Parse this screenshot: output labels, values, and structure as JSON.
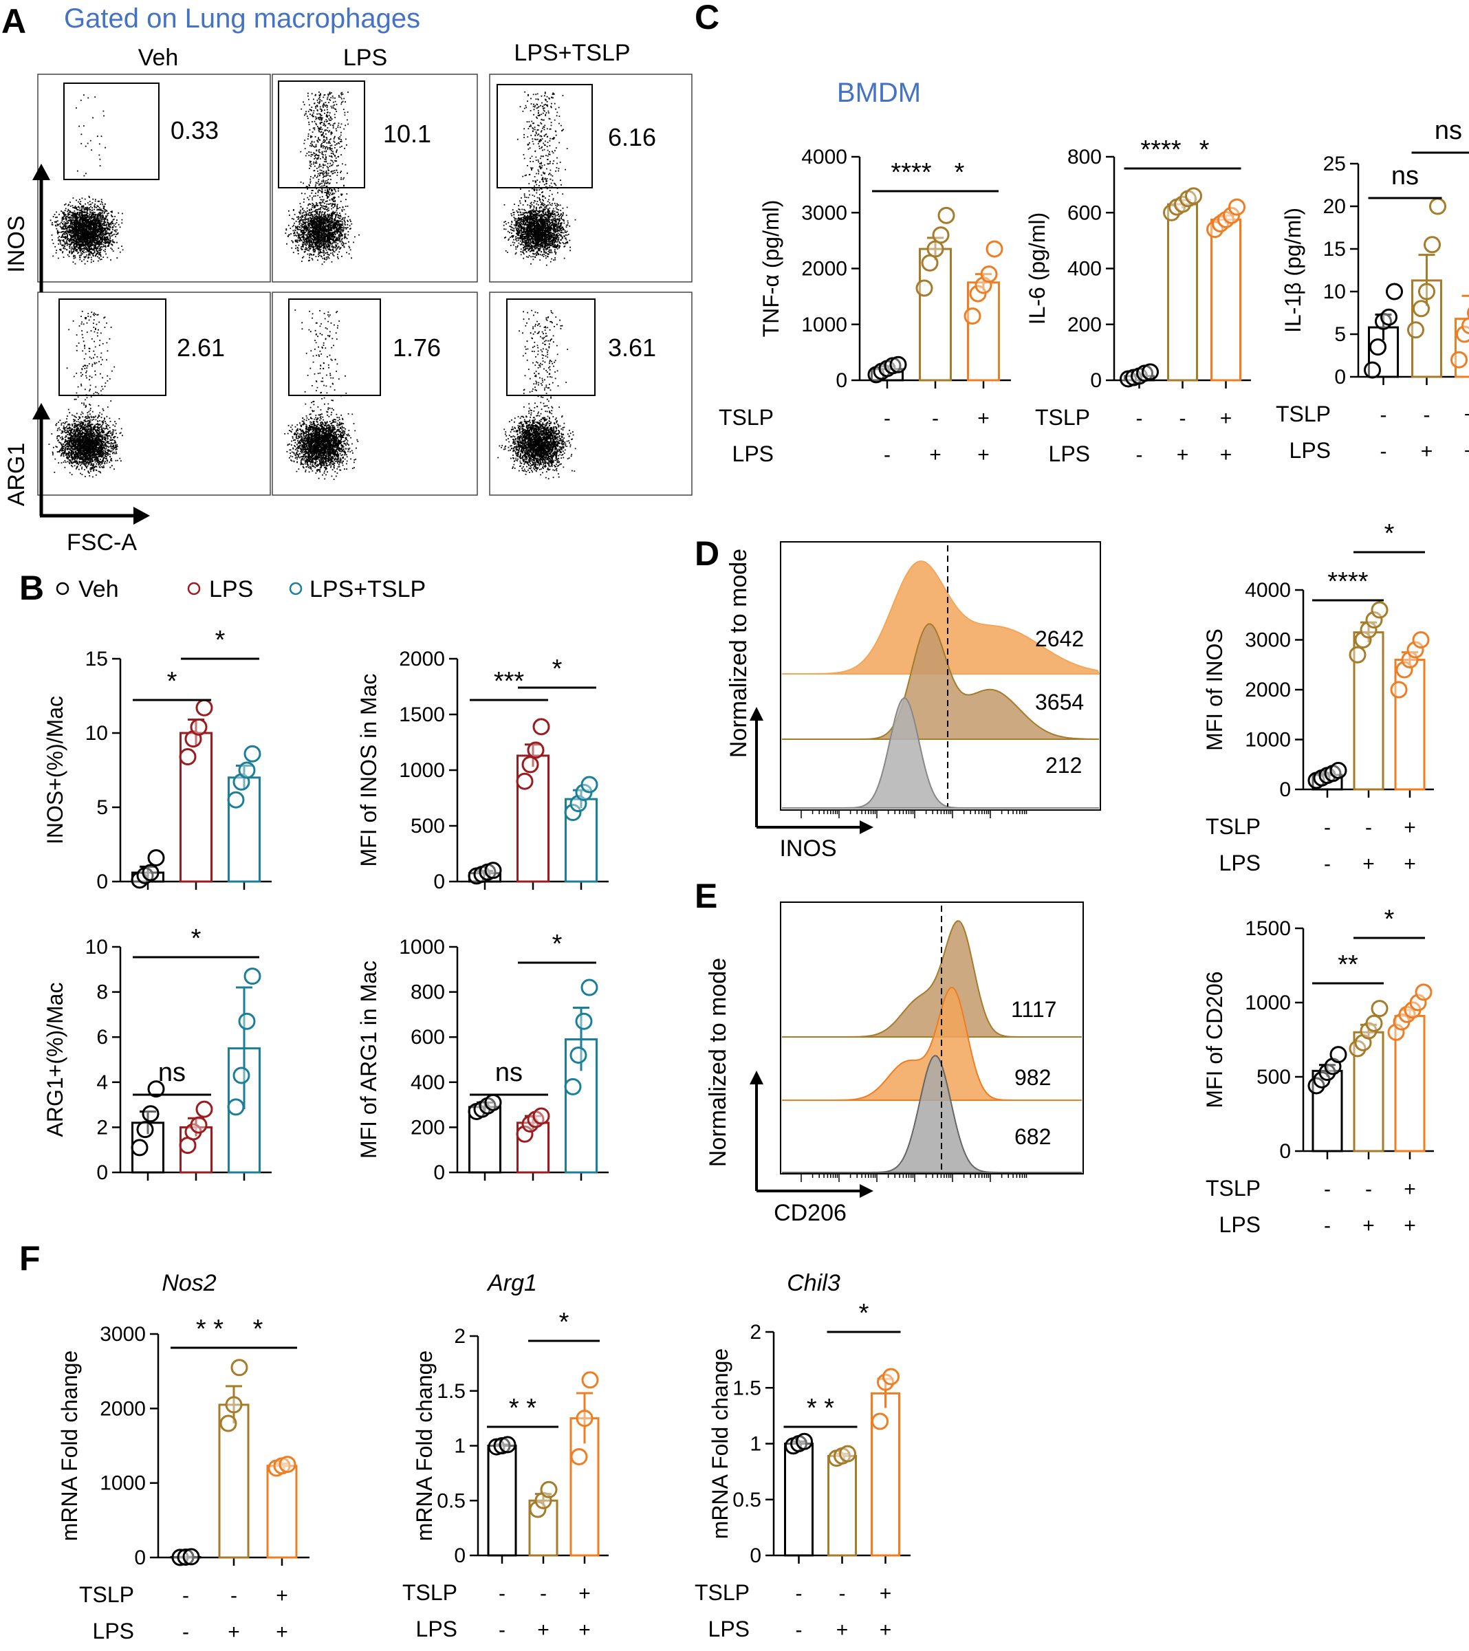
{
  "colors": {
    "veh": "#000000",
    "lps_red": "#9b1c1f",
    "tslp_teal": "#1b7f9a",
    "lps_brown": "#a67b2a",
    "tslp_orange": "#ef7d22",
    "hist_orange": "#f2a65a",
    "hist_brown": "#c49a6c",
    "hist_gray": "#a9a9a9",
    "accent_blue": "#4472c4"
  },
  "panel_letters": {
    "A": "A",
    "B": "B",
    "C": "C",
    "D": "D",
    "E": "E",
    "F": "F"
  },
  "panel_a": {
    "header": "Gated on Lung macrophages",
    "columns": [
      "Veh",
      "LPS",
      "LPS+TSLP"
    ],
    "row_labels": [
      "INOS",
      "ARG1"
    ],
    "x_label": "FSC-A",
    "gate_values": [
      [
        "0.33",
        "10.1",
        "6.16"
      ],
      [
        "2.61",
        "1.76",
        "3.61"
      ]
    ]
  },
  "panel_b": {
    "legend": [
      "Veh",
      "LPS",
      "LPS+TSLP"
    ]
  },
  "panel_c": {
    "header": "BMDM"
  },
  "treatment_labels": {
    "tslp": "TSLP",
    "lps": "LPS",
    "minus": "-",
    "plus": "+"
  },
  "panel_d": {
    "x_label": "INOS",
    "y_label": "Normalized to mode",
    "values": [
      "2642",
      "3654",
      "212"
    ]
  },
  "panel_e": {
    "x_label": "CD206",
    "y_label": "Normalized to mode",
    "values": [
      "1117",
      "982",
      "682"
    ]
  },
  "panel_f": {
    "gene_titles": [
      "Nos2",
      "Arg1",
      "Chil3"
    ]
  },
  "chart_data": [
    {
      "id": "B1",
      "type": "bar",
      "ylabel": "INOS+(%)/Mac",
      "ylim": [
        0,
        15
      ],
      "yticks": [
        0,
        5,
        10,
        15
      ],
      "categories": [
        "Veh",
        "LPS",
        "LPS+TSLP"
      ],
      "values": [
        0.6,
        10.0,
        7.0
      ],
      "errors": [
        0.4,
        0.9,
        0.8
      ],
      "points": [
        [
          0.1,
          0.4,
          0.6,
          1.6
        ],
        [
          8.4,
          9.6,
          10.4,
          11.7
        ],
        [
          5.5,
          6.7,
          7.5,
          8.6
        ]
      ],
      "significance": [
        {
          "label": "*",
          "from": 0,
          "to": 1
        },
        {
          "label": "*",
          "from": 1,
          "to": 2
        }
      ]
    },
    {
      "id": "B2",
      "type": "bar",
      "ylabel": "MFI of INOS in Mac",
      "ylim": [
        0,
        2000
      ],
      "yticks": [
        0,
        500,
        1000,
        1500,
        2000
      ],
      "categories": [
        "Veh",
        "LPS",
        "LPS+TSLP"
      ],
      "values": [
        75,
        1130,
        740
      ],
      "errors": [
        20,
        100,
        80
      ],
      "points": [
        [
          50,
          65,
          85,
          100
        ],
        [
          900,
          1050,
          1180,
          1390
        ],
        [
          620,
          700,
          800,
          870
        ]
      ],
      "significance": [
        {
          "label": "***",
          "from": 0,
          "to": 1
        },
        {
          "label": "*",
          "from": 1,
          "to": 2
        }
      ]
    },
    {
      "id": "B3",
      "type": "bar",
      "ylabel": "ARG1+(%)/Mac",
      "ylim": [
        0,
        10
      ],
      "yticks": [
        0,
        2,
        4,
        6,
        8,
        10
      ],
      "categories": [
        "Veh",
        "LPS",
        "LPS+TSLP"
      ],
      "values": [
        2.2,
        2.0,
        5.5
      ],
      "errors": [
        0.5,
        0.4,
        2.7
      ],
      "points": [
        [
          1.1,
          1.9,
          2.6,
          3.7
        ],
        [
          1.2,
          1.8,
          2.1,
          2.8
        ],
        [
          2.9,
          4.3,
          6.7,
          8.7
        ]
      ],
      "significance": [
        {
          "label": "ns",
          "from": 0,
          "to": 1
        },
        {
          "label": "*",
          "from": 0,
          "to": 2
        }
      ]
    },
    {
      "id": "B4",
      "type": "bar",
      "ylabel": "MFI of ARG1 in Mac",
      "ylim": [
        0,
        1000
      ],
      "yticks": [
        0,
        200,
        400,
        600,
        800,
        1000
      ],
      "categories": [
        "Veh",
        "LPS",
        "LPS+TSLP"
      ],
      "values": [
        290,
        220,
        590
      ],
      "errors": [
        20,
        30,
        140
      ],
      "points": [
        [
          270,
          280,
          295,
          310
        ],
        [
          170,
          215,
          235,
          250
        ],
        [
          380,
          520,
          670,
          820
        ]
      ],
      "significance": [
        {
          "label": "ns",
          "from": 0,
          "to": 1
        },
        {
          "label": "*",
          "from": 1,
          "to": 2
        }
      ]
    },
    {
      "id": "C1",
      "type": "bar",
      "ylabel": "TNF-α (pg/ml)",
      "ylim": [
        0,
        4000
      ],
      "yticks": [
        0,
        1000,
        2000,
        3000,
        4000
      ],
      "tslp": [
        "-",
        "-",
        "+"
      ],
      "lps": [
        "-",
        "+",
        "+"
      ],
      "values": [
        200,
        2350,
        1750
      ],
      "errors": [
        50,
        200,
        150
      ],
      "points": [
        [
          100,
          160,
          210,
          260,
          280
        ],
        [
          1650,
          2100,
          2350,
          2600,
          2950
        ],
        [
          1150,
          1550,
          1700,
          1900,
          2350
        ]
      ],
      "significance": [
        {
          "label": "****",
          "from": 0,
          "to": 1
        },
        {
          "label": "*",
          "from": 1,
          "to": 2
        }
      ]
    },
    {
      "id": "C2",
      "type": "bar",
      "ylabel": "IL-6 (pg/ml)",
      "ylim": [
        0,
        800
      ],
      "yticks": [
        0,
        200,
        400,
        600,
        800
      ],
      "tslp": [
        "-",
        "-",
        "+"
      ],
      "lps": [
        "-",
        "+",
        "+"
      ],
      "values": [
        15,
        630,
        575
      ],
      "errors": [
        5,
        15,
        15
      ],
      "points": [
        [
          5,
          10,
          15,
          25,
          30
        ],
        [
          600,
          620,
          630,
          650,
          660
        ],
        [
          540,
          560,
          575,
          590,
          620
        ]
      ],
      "significance": [
        {
          "label": "****",
          "from": 0,
          "to": 1
        },
        {
          "label": "*",
          "from": 1,
          "to": 2
        }
      ]
    },
    {
      "id": "C3",
      "type": "bar",
      "ylabel": "IL-1β (pg/ml)",
      "ylim": [
        0,
        25
      ],
      "yticks": [
        0,
        5,
        10,
        15,
        20,
        25
      ],
      "tslp": [
        "-",
        "-",
        "+"
      ],
      "lps": [
        "-",
        "+",
        "+"
      ],
      "values": [
        5.8,
        11.3,
        6.8
      ],
      "errors": [
        1.5,
        3.0,
        2.7
      ],
      "points": [
        [
          0.8,
          3.5,
          6.5,
          7.0,
          10.0
        ],
        [
          5.5,
          8.0,
          10.0,
          15.5,
          20.0
        ],
        [
          2.0,
          5.0,
          6.0,
          7.5,
          15.5
        ]
      ],
      "significance": [
        {
          "label": "ns",
          "from": 0,
          "to": 1
        },
        {
          "label": "ns",
          "from": 1,
          "to": 2
        }
      ]
    },
    {
      "id": "D",
      "type": "bar",
      "ylabel": "MFI of INOS",
      "ylim": [
        0,
        4000
      ],
      "yticks": [
        0,
        1000,
        2000,
        3000,
        4000
      ],
      "tslp": [
        "-",
        "-",
        "+"
      ],
      "lps": [
        "-",
        "+",
        "+"
      ],
      "values": [
        290,
        3150,
        2600
      ],
      "errors": [
        40,
        200,
        150
      ],
      "points": [
        [
          180,
          230,
          280,
          320,
          380
        ],
        [
          2700,
          3000,
          3200,
          3400,
          3600
        ],
        [
          2000,
          2400,
          2600,
          2800,
          3000
        ]
      ],
      "significance": [
        {
          "label": "****",
          "from": 0,
          "to": 1
        },
        {
          "label": "*",
          "from": 1,
          "to": 2
        }
      ]
    },
    {
      "id": "E",
      "type": "bar",
      "ylabel": "MFI of CD206",
      "ylim": [
        0,
        1500
      ],
      "yticks": [
        0,
        500,
        1000,
        1500
      ],
      "tslp": [
        "-",
        "-",
        "+"
      ],
      "lps": [
        "-",
        "+",
        "+"
      ],
      "values": [
        540,
        800,
        910
      ],
      "errors": [
        40,
        50,
        40
      ],
      "points": [
        [
          440,
          480,
          530,
          570,
          650
        ],
        [
          690,
          730,
          810,
          860,
          960
        ],
        [
          800,
          870,
          920,
          950,
          1000,
          1070
        ]
      ],
      "significance": [
        {
          "label": "**",
          "from": 0,
          "to": 1
        },
        {
          "label": "*",
          "from": 1,
          "to": 2
        }
      ]
    },
    {
      "id": "F1",
      "type": "bar",
      "title": "Nos2",
      "ylabel": "mRNA Fold change",
      "ylim": [
        0,
        3000
      ],
      "yticks": [
        0,
        1000,
        2000,
        3000
      ],
      "tslp": [
        "-",
        "-",
        "+"
      ],
      "lps": [
        "-",
        "+",
        "+"
      ],
      "values": [
        5,
        2050,
        1230
      ],
      "errors": [
        3,
        250,
        30
      ],
      "points": [
        [
          1,
          5,
          10
        ],
        [
          1800,
          2050,
          2550
        ],
        [
          1200,
          1230,
          1250
        ]
      ],
      "significance": [
        {
          "label": "* *",
          "from": 0,
          "to": 1
        },
        {
          "label": "*",
          "from": 1,
          "to": 2
        }
      ]
    },
    {
      "id": "F2",
      "type": "bar",
      "title": "Arg1",
      "ylabel": "mRNA Fold change",
      "ylim": [
        0,
        2.0
      ],
      "yticks": [
        0.0,
        0.5,
        1.0,
        1.5,
        2.0
      ],
      "tslp": [
        "-",
        "-",
        "+"
      ],
      "lps": [
        "-",
        "+",
        "+"
      ],
      "values": [
        1.0,
        0.5,
        1.25
      ],
      "errors": [
        0.01,
        0.06,
        0.23
      ],
      "points": [
        [
          0.99,
          1.0,
          1.01
        ],
        [
          0.42,
          0.5,
          0.6
        ],
        [
          0.9,
          1.25,
          1.6
        ]
      ],
      "significance": [
        {
          "label": "* *",
          "from": 0,
          "to": 1
        },
        {
          "label": "*",
          "from": 1,
          "to": 2
        }
      ]
    },
    {
      "id": "F3",
      "type": "bar",
      "title": "Chil3",
      "ylabel": "mRNA Fold change",
      "ylim": [
        0,
        2.0
      ],
      "yticks": [
        0.0,
        0.5,
        1.0,
        1.5,
        2.0
      ],
      "tslp": [
        "-",
        "-",
        "+"
      ],
      "lps": [
        "-",
        "+",
        "+"
      ],
      "values": [
        1.0,
        0.89,
        1.45
      ],
      "errors": [
        0.02,
        0.02,
        0.13
      ],
      "points": [
        [
          0.98,
          1.0,
          1.02
        ],
        [
          0.87,
          0.89,
          0.91
        ],
        [
          1.2,
          1.55,
          1.6
        ]
      ],
      "significance": [
        {
          "label": "* *",
          "from": 0,
          "to": 1
        },
        {
          "label": "*",
          "from": 1,
          "to": 2
        }
      ]
    }
  ]
}
